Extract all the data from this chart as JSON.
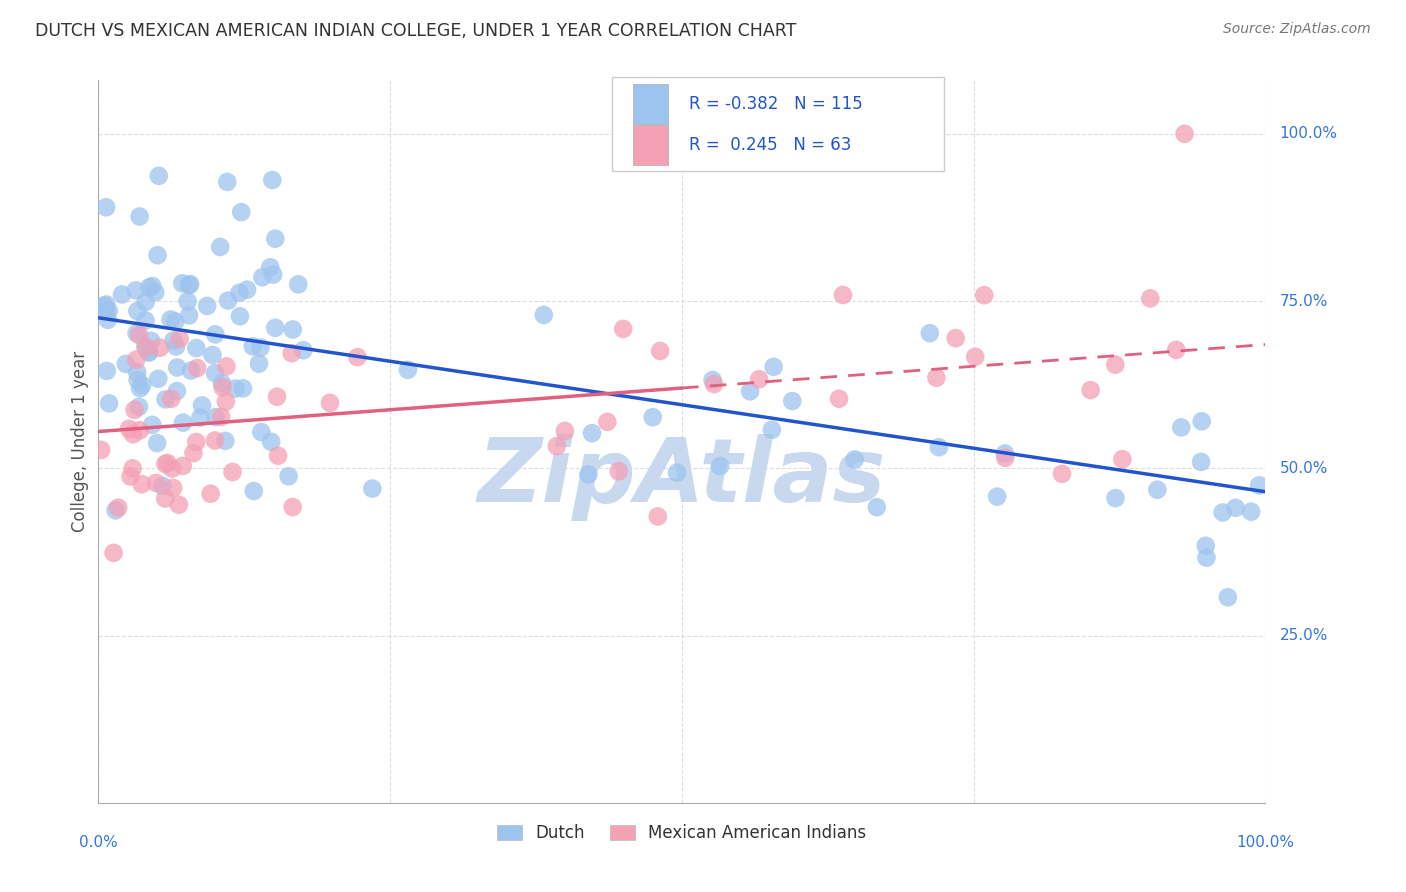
{
  "title": "DUTCH VS MEXICAN AMERICAN INDIAN COLLEGE, UNDER 1 YEAR CORRELATION CHART",
  "source": "Source: ZipAtlas.com",
  "ylabel": "College, Under 1 year",
  "ytick_labels": [
    "100.0%",
    "75.0%",
    "50.0%",
    "25.0%"
  ],
  "ytick_values": [
    1.0,
    0.75,
    0.5,
    0.25
  ],
  "xlim": [
    0.0,
    1.0
  ],
  "ylim": [
    0.0,
    1.08
  ],
  "dutch_R": -0.382,
  "dutch_N": 115,
  "mexican_R": 0.245,
  "mexican_N": 63,
  "dutch_color": "#9DC4EE",
  "mexican_color": "#F4A0B5",
  "dutch_line_color": "#2255CC",
  "mexican_line_color": "#E06080",
  "watermark_color": "#C8D8EE",
  "legend_dutch_label": "Dutch",
  "legend_mexican_label": "Mexican American Indians",
  "background_color": "#ffffff",
  "grid_color": "#dddddd",
  "title_color": "#333333",
  "axis_label_color": "#3377DD",
  "legend_text_color": "#2255CC",
  "dutch_line_start_y": 0.725,
  "dutch_line_end_y": 0.465,
  "mexican_line_start_y": 0.555,
  "mexican_line_end_y": 0.685
}
